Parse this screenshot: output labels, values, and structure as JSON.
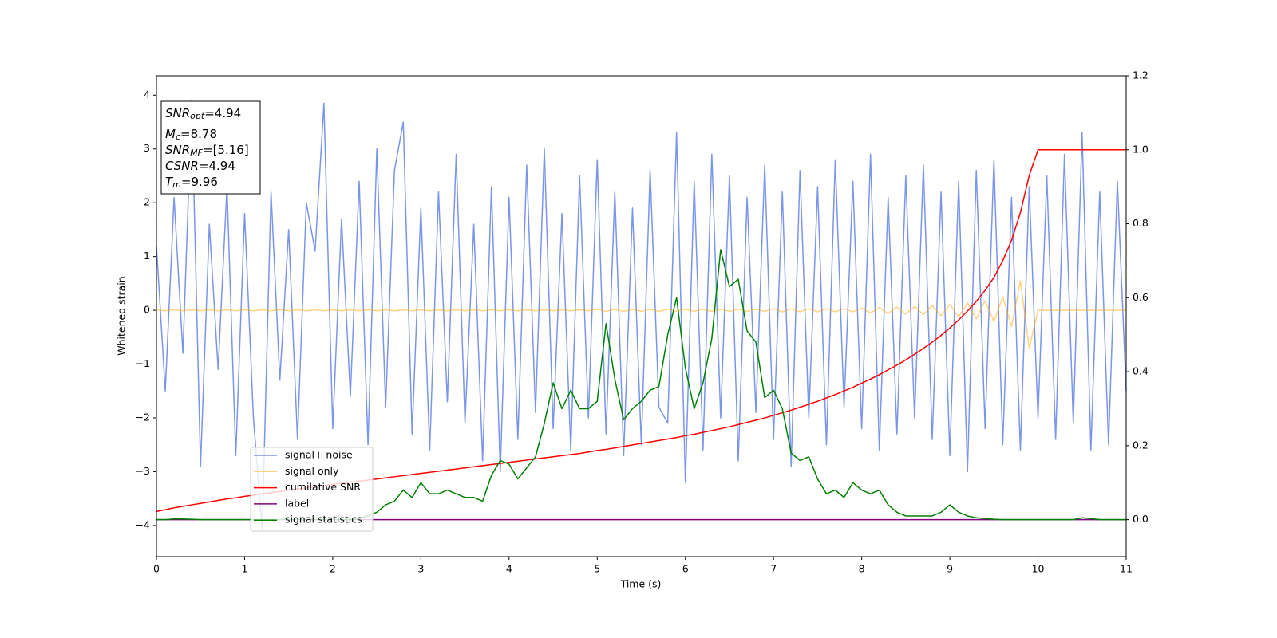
{
  "chart_data": {
    "type": "line",
    "xlabel": "Time (s)",
    "ylabel": "Whitened strain",
    "xlim": [
      0,
      11
    ],
    "ylim": [
      -4.58,
      4.36
    ],
    "y2lim": [
      -0.1,
      1.2
    ],
    "xticks": [
      0,
      1,
      2,
      3,
      4,
      5,
      6,
      7,
      8,
      9,
      10,
      11
    ],
    "yticks": [
      {
        "value": -4,
        "label": "−4"
      },
      {
        "value": -3,
        "label": "−3"
      },
      {
        "value": -2,
        "label": "−2"
      },
      {
        "value": -1,
        "label": "−1"
      },
      0,
      1,
      2,
      3,
      4
    ],
    "y2ticks": [
      {
        "value": 0,
        "label": "0.0"
      },
      0.2,
      0.4,
      0.6,
      0.8,
      {
        "value": 1,
        "label": "1.0"
      },
      1.2
    ],
    "annotations": [
      {
        "symbol": "SNR",
        "sub": "opt",
        "text": "=4.94"
      },
      {
        "symbol": "M",
        "sub": "c",
        "text": "=8.78"
      },
      {
        "symbol": "SNR",
        "sub": "MF",
        "text": "=[5.16]"
      },
      {
        "symbol": "CSNR",
        "text": "=4.94"
      },
      {
        "symbol": "T",
        "sub": "m",
        "text": "=9.96"
      }
    ],
    "x": [
      0,
      0.1,
      0.2,
      0.3,
      0.4,
      0.5,
      0.6,
      0.7,
      0.8,
      0.9,
      1,
      1.1,
      1.2,
      1.3,
      1.4,
      1.5,
      1.6,
      1.7,
      1.8,
      1.9,
      2,
      2.1,
      2.2,
      2.3,
      2.4,
      2.5,
      2.6,
      2.7,
      2.8,
      2.9,
      3,
      3.1,
      3.2,
      3.3,
      3.4,
      3.5,
      3.6,
      3.7,
      3.8,
      3.9,
      4,
      4.1,
      4.2,
      4.3,
      4.4,
      4.5,
      4.6,
      4.7,
      4.8,
      4.9,
      5,
      5.1,
      5.2,
      5.3,
      5.4,
      5.5,
      5.6,
      5.7,
      5.8,
      5.9,
      6,
      6.1,
      6.2,
      6.3,
      6.4,
      6.5,
      6.6,
      6.7,
      6.8,
      6.9,
      7,
      7.1,
      7.2,
      7.3,
      7.4,
      7.5,
      7.6,
      7.7,
      7.8,
      7.9,
      8,
      8.1,
      8.2,
      8.3,
      8.4,
      8.5,
      8.6,
      8.7,
      8.8,
      8.9,
      9,
      9.1,
      9.2,
      9.3,
      9.4,
      9.5,
      9.6,
      9.7,
      9.8,
      9.9,
      10,
      10.1,
      10.2,
      10.3,
      10.4,
      10.5,
      10.6,
      10.7,
      10.8,
      10.9,
      11
    ],
    "series": [
      {
        "name": "signal+ noise",
        "color": "#4169e1",
        "opacity": 0.7,
        "values": [
          1.2,
          -1.5,
          2.1,
          -0.8,
          3.9,
          -2.9,
          1.6,
          -1.1,
          2.3,
          -2.7,
          1.8,
          -2.0,
          -4.1,
          2.2,
          -1.3,
          1.5,
          -2.4,
          2.0,
          1.1,
          3.85,
          -2.2,
          1.7,
          -1.6,
          2.4,
          -2.5,
          3.0,
          -1.8,
          2.6,
          3.5,
          -2.3,
          1.9,
          -2.6,
          2.2,
          -1.7,
          2.9,
          -2.1,
          1.6,
          -2.8,
          2.3,
          -3.0,
          2.1,
          -2.4,
          2.7,
          -1.9,
          3.0,
          -2.2,
          1.8,
          -2.6,
          2.5,
          -2.0,
          2.8,
          -2.3,
          2.2,
          -2.7,
          1.9,
          -2.5,
          2.6,
          -1.8,
          -2.1,
          3.3,
          -3.2,
          2.4,
          -2.6,
          2.9,
          -2.0,
          2.5,
          -2.8,
          2.1,
          -1.9,
          2.7,
          -2.4,
          2.2,
          -2.9,
          2.6,
          -2.0,
          2.3,
          -2.5,
          2.8,
          -1.8,
          2.4,
          -2.2,
          2.9,
          -2.6,
          2.1,
          -2.3,
          2.5,
          -2.0,
          2.7,
          -2.4,
          2.2,
          -2.7,
          2.4,
          -3.0,
          2.6,
          -2.2,
          2.8,
          -2.5,
          2.1,
          -2.6,
          2.3,
          -2.0,
          2.5,
          -2.4,
          2.9,
          -2.1,
          3.3,
          -2.6,
          2.2,
          -2.5,
          2.4,
          -1.5
        ]
      },
      {
        "name": "signal only",
        "color": "#ffa500",
        "opacity": 0.5,
        "values": [
          0.01,
          -0.01,
          0.01,
          -0.01,
          0.01,
          -0.01,
          0.01,
          -0.01,
          0.01,
          -0.01,
          0.01,
          -0.01,
          0.01,
          -0.01,
          0.01,
          -0.01,
          0.01,
          -0.01,
          0.01,
          -0.01,
          0.01,
          -0.01,
          0.01,
          -0.01,
          0.01,
          -0.01,
          0.01,
          -0.01,
          0.01,
          -0.01,
          0.01,
          -0.01,
          0.01,
          -0.01,
          0.01,
          -0.01,
          0.01,
          -0.01,
          0.01,
          -0.01,
          0.01,
          -0.01,
          0.01,
          -0.01,
          0.01,
          -0.01,
          0.01,
          -0.01,
          0.01,
          -0.01,
          0.02,
          -0.02,
          0.02,
          -0.02,
          0.02,
          -0.02,
          0.02,
          -0.02,
          0.02,
          -0.02,
          0.02,
          -0.02,
          0.02,
          -0.02,
          0.02,
          -0.02,
          0.02,
          -0.02,
          0.02,
          -0.02,
          0.03,
          -0.03,
          0.03,
          -0.03,
          0.03,
          -0.03,
          0.03,
          -0.03,
          0.03,
          -0.03,
          0.04,
          -0.05,
          0.05,
          -0.06,
          0.06,
          -0.07,
          0.07,
          -0.08,
          0.09,
          -0.1,
          0.11,
          -0.12,
          0.14,
          -0.16,
          0.18,
          -0.21,
          0.25,
          -0.3,
          0.55,
          -0.7,
          0,
          0,
          0,
          0,
          0,
          0,
          0,
          0,
          0,
          0,
          0
        ]
      },
      {
        "name": "cumilative SNR",
        "color": "#ff0000",
        "axis": "y2",
        "values": [
          0.022,
          0.027,
          0.032,
          0.036,
          0.04,
          0.044,
          0.048,
          0.052,
          0.056,
          0.059,
          0.063,
          0.066,
          0.07,
          0.073,
          0.076,
          0.08,
          0.083,
          0.086,
          0.089,
          0.092,
          0.095,
          0.098,
          0.101,
          0.104,
          0.107,
          0.11,
          0.113,
          0.116,
          0.119,
          0.122,
          0.125,
          0.128,
          0.131,
          0.134,
          0.137,
          0.14,
          0.143,
          0.146,
          0.149,
          0.152,
          0.155,
          0.158,
          0.161,
          0.164,
          0.167,
          0.17,
          0.173,
          0.176,
          0.179,
          0.183,
          0.187,
          0.19,
          0.194,
          0.198,
          0.202,
          0.206,
          0.21,
          0.214,
          0.218,
          0.222,
          0.227,
          0.231,
          0.236,
          0.241,
          0.246,
          0.251,
          0.257,
          0.263,
          0.269,
          0.275,
          0.282,
          0.289,
          0.296,
          0.304,
          0.312,
          0.32,
          0.329,
          0.338,
          0.348,
          0.358,
          0.369,
          0.38,
          0.392,
          0.405,
          0.418,
          0.432,
          0.447,
          0.463,
          0.48,
          0.498,
          0.518,
          0.54,
          0.564,
          0.59,
          0.62,
          0.655,
          0.7,
          0.755,
          0.83,
          0.93,
          1,
          1,
          1,
          1,
          1,
          1,
          1,
          1,
          1,
          1,
          1
        ]
      },
      {
        "name": "label",
        "color": "#800080",
        "axis": "y2",
        "x": [
          0,
          11
        ],
        "values": [
          0,
          0
        ]
      },
      {
        "name": "signal statistics",
        "color": "#008000",
        "axis": "y2",
        "values": [
          0,
          0,
          0.002,
          0.002,
          0.001,
          0,
          0,
          0,
          0,
          0,
          0,
          0,
          0,
          0,
          0,
          0,
          0,
          0,
          0,
          0,
          0,
          0,
          0,
          0.003,
          0.01,
          0.02,
          0.04,
          0.05,
          0.08,
          0.06,
          0.1,
          0.07,
          0.07,
          0.08,
          0.07,
          0.06,
          0.06,
          0.05,
          0.12,
          0.16,
          0.15,
          0.11,
          0.14,
          0.17,
          0.26,
          0.37,
          0.3,
          0.35,
          0.3,
          0.3,
          0.32,
          0.53,
          0.38,
          0.27,
          0.3,
          0.32,
          0.35,
          0.36,
          0.5,
          0.6,
          0.41,
          0.3,
          0.37,
          0.49,
          0.73,
          0.63,
          0.65,
          0.51,
          0.48,
          0.33,
          0.35,
          0.3,
          0.18,
          0.16,
          0.17,
          0.11,
          0.07,
          0.08,
          0.06,
          0.1,
          0.08,
          0.07,
          0.08,
          0.04,
          0.02,
          0.01,
          0.01,
          0.01,
          0.01,
          0.02,
          0.04,
          0.02,
          0.01,
          0.005,
          0.003,
          0.001,
          0,
          0,
          0,
          0,
          0,
          0,
          0,
          0,
          0,
          0.005,
          0.003,
          0,
          0,
          0,
          0
        ]
      }
    ]
  }
}
